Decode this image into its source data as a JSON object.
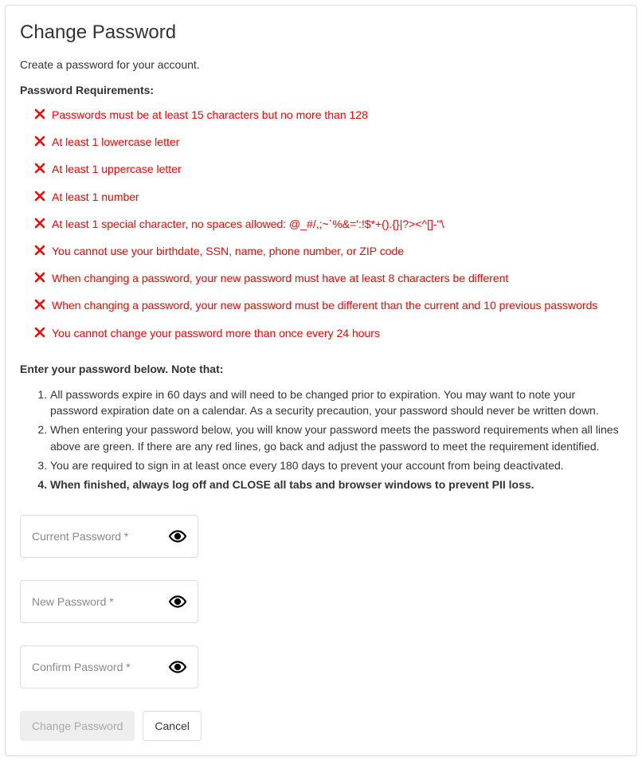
{
  "title": "Change Password",
  "subtitle": "Create a password for your account.",
  "requirements_label": "Password Requirements:",
  "requirements": [
    "Passwords must be at least 15 characters but no more than 128",
    "At least 1 lowercase letter",
    "At least 1 uppercase letter",
    "At least 1 number",
    "At least 1 special character, no spaces allowed: @_#/,;~`%&=':!$*+().{}|?><^[]-\"\\",
    "You cannot use your birthdate, SSN, name, phone number, or ZIP code",
    "When changing a password, your new password must have at least 8 characters be different",
    "When changing a password, your new password must be different than the current and 10 previous passwords",
    "You cannot change your password more than once every 24 hours"
  ],
  "requirement_color": "#ff0000",
  "notes_label": "Enter your password below. Note that:",
  "notes": [
    {
      "text": "All passwords expire in 60 days and will need to be changed prior to expiration. You may want to note your password expiration date on a calendar. As a security precaution, your password should never be written down.",
      "bold": false
    },
    {
      "text": "When entering your password below, you will know your password meets the password requirements when all lines above are green. If there are any red lines, go back and adjust the password to meet the requirement identified.",
      "bold": false
    },
    {
      "text": "You are required to sign in at least once every 180 days to prevent your account from being deactivated.",
      "bold": false
    },
    {
      "text": "When finished, always log off and CLOSE all tabs and browser windows to prevent PII loss.",
      "bold": true
    }
  ],
  "fields": {
    "current": {
      "placeholder": "Current Password *",
      "value": ""
    },
    "new": {
      "placeholder": "New Password *",
      "value": ""
    },
    "confirm": {
      "placeholder": "Confirm Password *",
      "value": ""
    }
  },
  "buttons": {
    "submit": "Change Password",
    "cancel": "Cancel"
  },
  "submit_disabled": true
}
